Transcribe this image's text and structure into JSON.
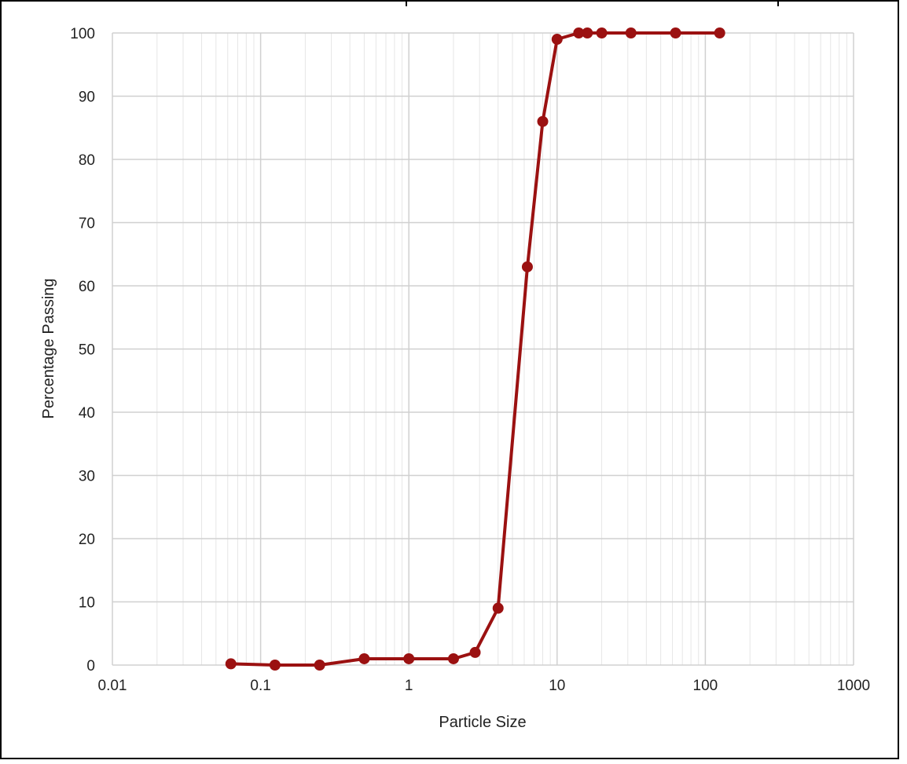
{
  "chart_data": {
    "type": "line",
    "title": "",
    "xlabel": "Particle Size",
    "ylabel": "Percentage Passing",
    "x_scale": "log",
    "xlim": [
      0.01,
      1000
    ],
    "ylim": [
      0,
      100
    ],
    "x_ticks": [
      "0.01",
      "0.1",
      "1",
      "10",
      "100",
      "1000"
    ],
    "y_ticks": [
      "0",
      "10",
      "20",
      "30",
      "40",
      "50",
      "60",
      "70",
      "80",
      "90",
      "100"
    ],
    "grid": true,
    "legend": "none",
    "series": [
      {
        "color": "#9b1111",
        "marker": "circle",
        "points": [
          {
            "x": 0.063,
            "y": 0.2
          },
          {
            "x": 0.125,
            "y": 0
          },
          {
            "x": 0.25,
            "y": 0
          },
          {
            "x": 0.5,
            "y": 1
          },
          {
            "x": 1,
            "y": 1
          },
          {
            "x": 2,
            "y": 1
          },
          {
            "x": 2.8,
            "y": 2
          },
          {
            "x": 4,
            "y": 9
          },
          {
            "x": 6.3,
            "y": 63
          },
          {
            "x": 8,
            "y": 86
          },
          {
            "x": 10,
            "y": 99
          },
          {
            "x": 14,
            "y": 100
          },
          {
            "x": 16,
            "y": 100
          },
          {
            "x": 20,
            "y": 100
          },
          {
            "x": 31.5,
            "y": 100
          },
          {
            "x": 63,
            "y": 100
          },
          {
            "x": 125,
            "y": 100
          }
        ]
      }
    ]
  }
}
